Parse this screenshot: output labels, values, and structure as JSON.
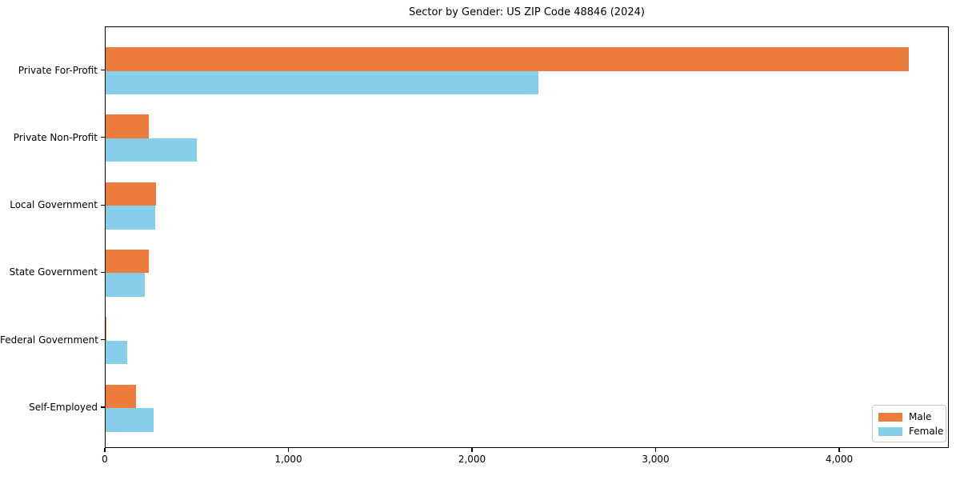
{
  "chart_data": {
    "type": "bar",
    "orientation": "horizontal",
    "title": "Sector by Gender: US ZIP Code 48846 (2024)",
    "categories": [
      "Private For-Profit",
      "Private Non-Profit",
      "Local Government",
      "State Government",
      "Federal Government",
      "Self-Employed"
    ],
    "series": [
      {
        "name": "Male",
        "color": "#ec7c3c",
        "values": [
          4375,
          237,
          275,
          237,
          6,
          167
        ]
      },
      {
        "name": "Female",
        "color": "#87ceeb",
        "values": [
          2357,
          498,
          268,
          214,
          118,
          260
        ]
      }
    ],
    "xlabel": "",
    "ylabel": "",
    "xlim": [
      0,
      4597
    ],
    "x_ticks": [
      0,
      1000,
      2000,
      3000,
      4000
    ],
    "x_tick_labels": [
      "0",
      "1,000",
      "2,000",
      "3,000",
      "4,000"
    ],
    "grid": false,
    "legend": {
      "position": "lower right",
      "entries": [
        "Male",
        "Female"
      ]
    }
  }
}
